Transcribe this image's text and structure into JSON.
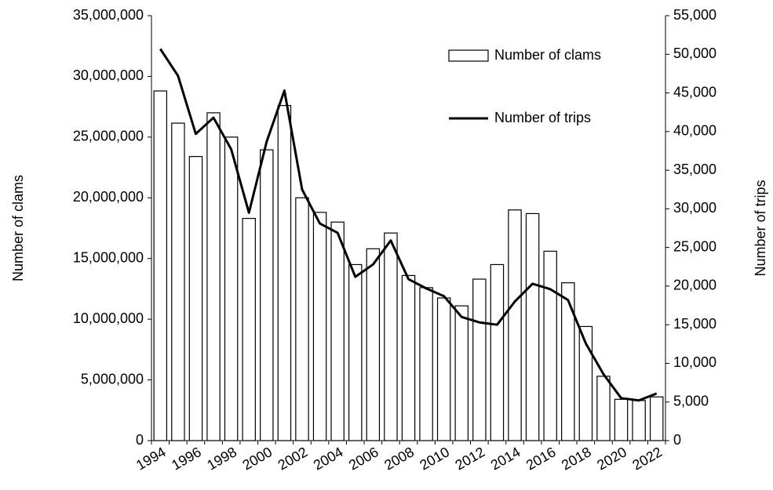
{
  "chart_data": {
    "type": "bar",
    "categories": [
      1994,
      null,
      1996,
      null,
      1998,
      null,
      2000,
      null,
      2002,
      null,
      2004,
      null,
      2006,
      null,
      2008,
      null,
      2010,
      null,
      2012,
      null,
      2014,
      null,
      2016,
      null,
      2018,
      null,
      2020,
      null,
      2022
    ],
    "series": [
      {
        "name": "Number of clams",
        "type": "bar",
        "color": "#ffffff",
        "axis": "y",
        "values": [
          28800000,
          26150000,
          23400000,
          27000000,
          25000000,
          18300000,
          23950000,
          27600000,
          20000000,
          18800000,
          18000000,
          14500000,
          15800000,
          17100000,
          13600000,
          12600000,
          11750000,
          11100000,
          13300000,
          14500000,
          19000000,
          18700000,
          15600000,
          13000000,
          9400000,
          5300000,
          3400000,
          3300000,
          3600000
        ]
      },
      {
        "name": "Number of trips",
        "type": "line",
        "color": "#000000",
        "axis": "y2",
        "values": [
          50700,
          47200,
          39700,
          41800,
          37700,
          29500,
          38700,
          45300,
          32500,
          28100,
          26900,
          21200,
          22800,
          25900,
          20900,
          19700,
          18700,
          16000,
          15300,
          15000,
          18000,
          20300,
          19600,
          18200,
          12600,
          8600,
          5500,
          5200,
          6100
        ]
      }
    ],
    "ylabel": "Number  of clams",
    "y2label": "Number  of trips",
    "ylim": [
      0,
      35000000
    ],
    "yticks": [
      0,
      {
        "value": 5000000,
        "label": "5,000,000"
      },
      {
        "value": 10000000,
        "label": "10,000,000"
      },
      {
        "value": 15000000,
        "label": "15,000,000"
      },
      {
        "value": 20000000,
        "label": "20,000,000"
      },
      {
        "value": 25000000,
        "label": "25,000,000"
      },
      {
        "value": 30000000,
        "label": "30,000,000"
      },
      {
        "value": 35000000,
        "label": "35,000,000"
      }
    ],
    "y2lim": [
      0,
      55000
    ],
    "y2ticks": [
      0,
      {
        "value": 5000,
        "label": "5,000"
      },
      {
        "value": 10000,
        "label": "10,000"
      },
      {
        "value": 15000,
        "label": "15,000"
      },
      {
        "value": 20000,
        "label": "20,000"
      },
      {
        "value": 25000,
        "label": "25,000"
      },
      {
        "value": 30000,
        "label": "30,000"
      },
      {
        "value": 35000,
        "label": "35,000"
      },
      {
        "value": 40000,
        "label": "40,000"
      },
      {
        "value": 45000,
        "label": "45,000"
      },
      {
        "value": 50000,
        "label": "50,000"
      },
      {
        "value": 55000,
        "label": "55,000"
      }
    ],
    "legend": "upper right",
    "grid": false
  }
}
